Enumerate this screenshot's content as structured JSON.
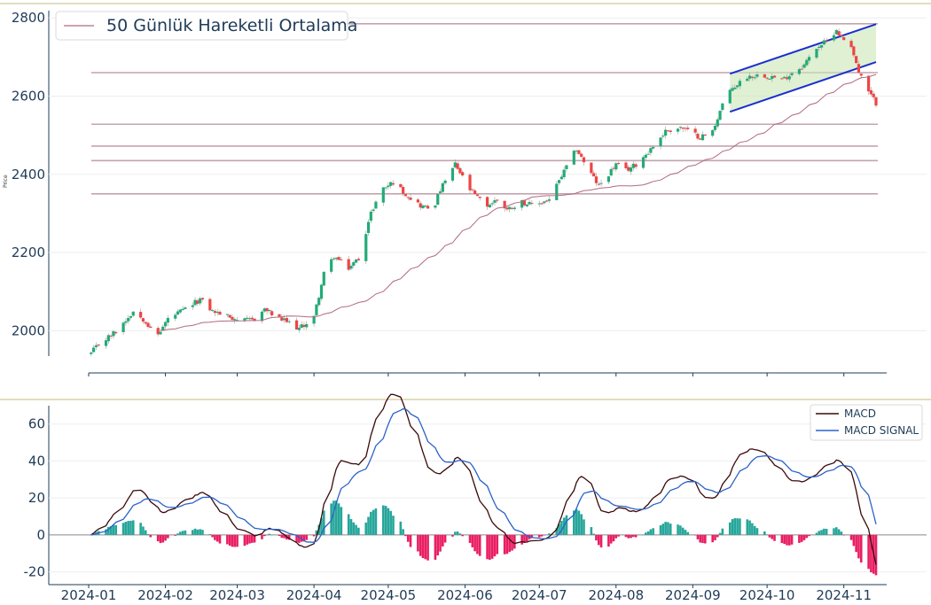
{
  "chart_data": [
    {
      "type": "candlestick",
      "ylabel": "Price",
      "ylim": [
        1935,
        2805
      ],
      "yticks": [
        2000,
        2200,
        2400,
        2600,
        2800
      ],
      "legend": {
        "placement": "top-left",
        "entries": [
          "50 Günlük Hareketli Ortalama"
        ]
      },
      "colors": {
        "up": "#22aa77",
        "down": "#ee4444",
        "ma": "#b06a7e",
        "level": "#c4a4ae",
        "channel": "#1a2fcf",
        "channel_fill": "#c9e6b6"
      },
      "horizontal_levels": [
        2785,
        2660,
        2528,
        2472,
        2435,
        2350
      ],
      "trend_channel": {
        "start": "2024-09-16",
        "end": "2024-11-14",
        "upper": [
          2657,
          2784
        ],
        "lower": [
          2560,
          2687
        ]
      },
      "anchors": [
        [
          "2024-01-02",
          1942
        ],
        [
          "2024-01-05",
          1965
        ],
        [
          "2024-01-12",
          1998
        ],
        [
          "2024-01-19",
          2050
        ],
        [
          "2024-01-24",
          2025
        ],
        [
          "2024-01-28",
          1980
        ],
        [
          "2024-02-02",
          2030
        ],
        [
          "2024-02-09",
          2055
        ],
        [
          "2024-02-15",
          2080
        ],
        [
          "2024-02-20",
          2050
        ],
        [
          "2024-02-27",
          2035
        ],
        [
          "2024-03-04",
          2025
        ],
        [
          "2024-03-08",
          2030
        ],
        [
          "2024-03-12",
          2055
        ],
        [
          "2024-03-18",
          2030
        ],
        [
          "2024-03-22",
          2020
        ],
        [
          "2024-03-26",
          2005
        ],
        [
          "2024-04-01",
          2035
        ],
        [
          "2024-04-05",
          2145
        ],
        [
          "2024-04-09",
          2190
        ],
        [
          "2024-04-15",
          2160
        ],
        [
          "2024-04-19",
          2185
        ],
        [
          "2024-04-24",
          2300
        ],
        [
          "2024-04-28",
          2360
        ],
        [
          "2024-05-03",
          2380
        ],
        [
          "2024-05-08",
          2350
        ],
        [
          "2024-05-14",
          2320
        ],
        [
          "2024-05-19",
          2310
        ],
        [
          "2024-05-22",
          2360
        ],
        [
          "2024-05-28",
          2425
        ],
        [
          "2024-06-03",
          2360
        ],
        [
          "2024-06-06",
          2340
        ],
        [
          "2024-06-10",
          2320
        ],
        [
          "2024-06-14",
          2335
        ],
        [
          "2024-06-18",
          2310
        ],
        [
          "2024-06-24",
          2330
        ],
        [
          "2024-06-28",
          2320
        ],
        [
          "2024-07-05",
          2335
        ],
        [
          "2024-07-10",
          2395
        ],
        [
          "2024-07-16",
          2465
        ],
        [
          "2024-07-21",
          2410
        ],
        [
          "2024-07-25",
          2370
        ],
        [
          "2024-08-01",
          2425
        ],
        [
          "2024-08-05",
          2410
        ],
        [
          "2024-08-09",
          2425
        ],
        [
          "2024-08-15",
          2465
        ],
        [
          "2024-08-21",
          2510
        ],
        [
          "2024-08-27",
          2520
        ],
        [
          "2024-09-04",
          2495
        ],
        [
          "2024-09-09",
          2510
        ],
        [
          "2024-09-13",
          2580
        ],
        [
          "2024-09-17",
          2620
        ],
        [
          "2024-09-23",
          2650
        ],
        [
          "2024-09-29",
          2655
        ],
        [
          "2024-10-03",
          2650
        ],
        [
          "2024-10-07",
          2640
        ],
        [
          "2024-10-11",
          2660
        ],
        [
          "2024-10-16",
          2680
        ],
        [
          "2024-10-21",
          2725
        ],
        [
          "2024-10-25",
          2740
        ],
        [
          "2024-10-29",
          2770
        ],
        [
          "2024-10-31",
          2750
        ],
        [
          "2024-11-04",
          2730
        ],
        [
          "2024-11-07",
          2660
        ],
        [
          "2024-11-11",
          2610
        ],
        [
          "2024-11-14",
          2582
        ]
      ]
    },
    {
      "type": "macd",
      "ylim": [
        -25,
        68
      ],
      "yticks": [
        -20,
        0,
        20,
        40,
        60
      ],
      "xticks": [
        "2024-01",
        "2024-02",
        "2024-03",
        "2024-04",
        "2024-05",
        "2024-06",
        "2024-07",
        "2024-08",
        "2024-09",
        "2024-10",
        "2024-11"
      ],
      "legend": {
        "placement": "top-right",
        "entries": [
          "MACD",
          "MACD SIGNAL"
        ]
      },
      "colors": {
        "macd": "#3a0a0a",
        "signal": "#2a62c9",
        "hist_pos": "#26a69a",
        "hist_neg": "#e91e63"
      }
    }
  ]
}
